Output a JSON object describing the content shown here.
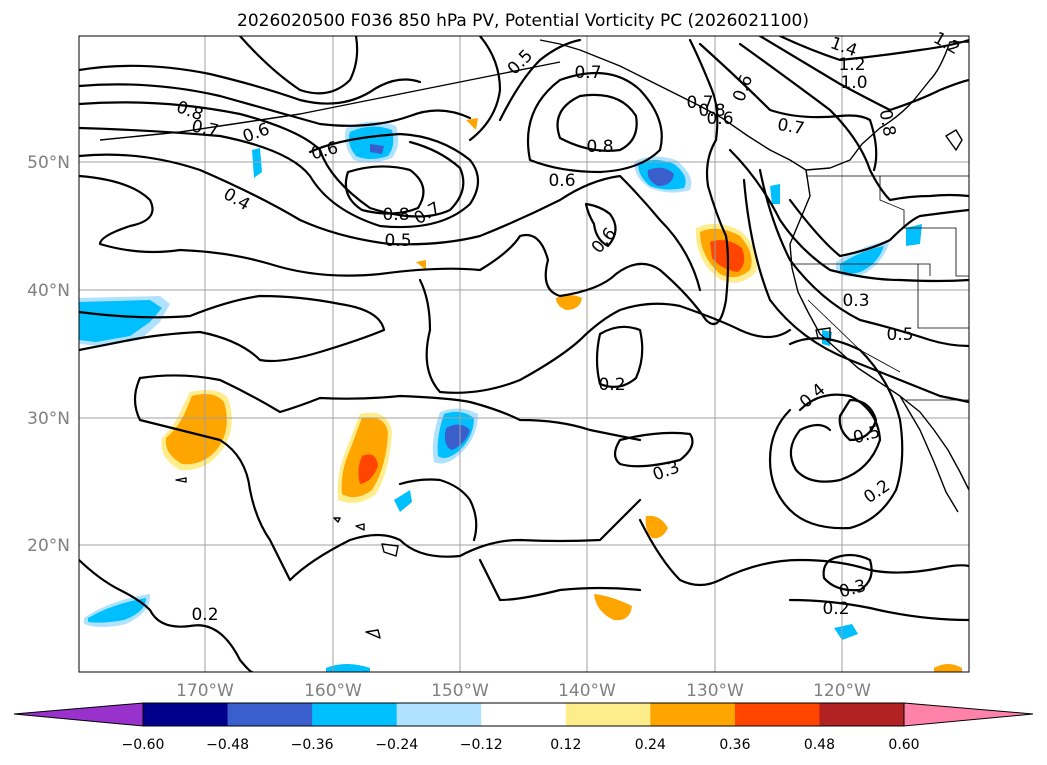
{
  "title": "2026020500 F036 850 hPa PV, Potential Vorticity PC (2026021100)",
  "lat_ticks": [
    "50°N",
    "40°N",
    "30°N",
    "20°N"
  ],
  "lon_ticks": [
    "170°W",
    "160°W",
    "150°W",
    "140°W",
    "130°W",
    "120°W"
  ],
  "colorbar": {
    "labels": [
      "−0.60",
      "−0.48",
      "−0.36",
      "−0.24",
      "−0.12",
      "0.12",
      "0.24",
      "0.36",
      "0.48",
      "0.60"
    ],
    "under_color": "#9932cc",
    "colors": [
      "#00008b",
      "#3a5fcd",
      "#00bfff",
      "#b0e2ff",
      "#ffffff",
      "#ffec8b",
      "#ffa500",
      "#ff4500",
      "#b22222"
    ],
    "over_color": "#ff82ab"
  },
  "contour_labels": [
    "0.8",
    "0.7",
    "0.6",
    "0.5",
    "0.7",
    "0.8",
    "0.6",
    "0.7",
    "0.6",
    "0.5",
    "1.4",
    "1.2",
    "1.0",
    "0.8",
    "0.7",
    "0.8",
    "0.6",
    "0.4",
    "0.6",
    "0.8",
    "0.7",
    "0.5",
    "0.6",
    "0.3",
    "0.2",
    "0.4",
    "0.5",
    "0.3",
    "0.2",
    "0.3",
    "0.2",
    "0.2",
    "1.2"
  ],
  "map_colors": {
    "ocean_gridline": "#a0a0a0",
    "land_line": "#000000"
  }
}
